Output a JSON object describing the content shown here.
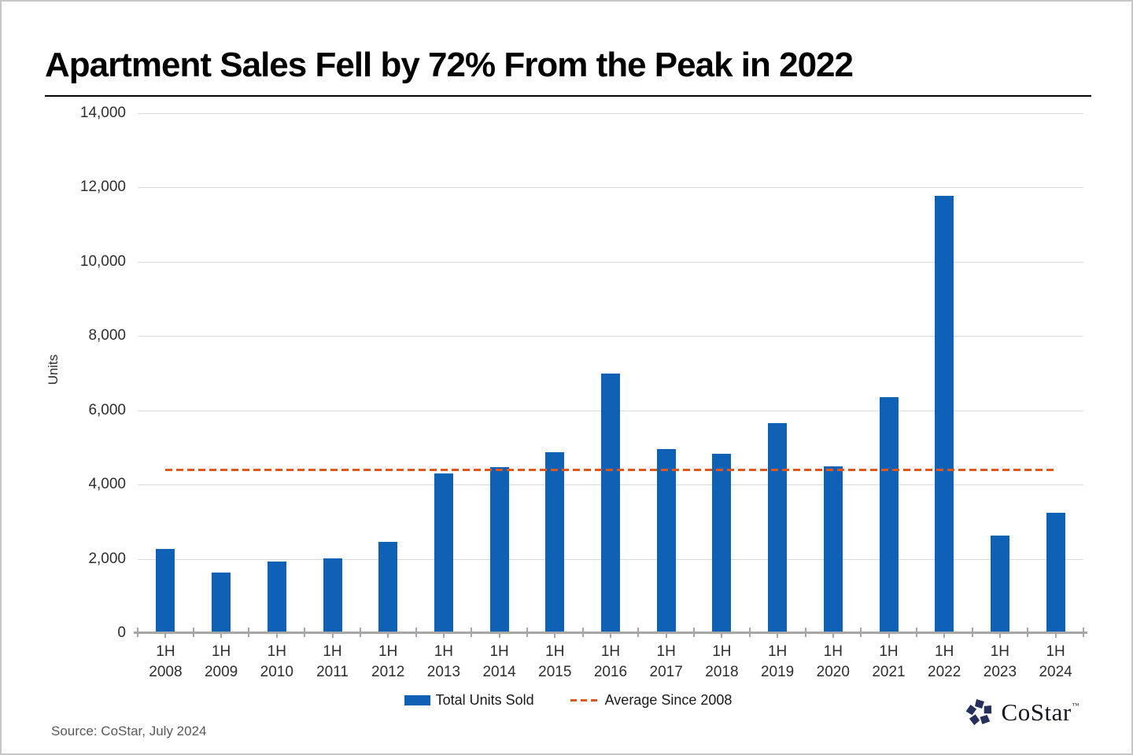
{
  "page": {
    "source_note": "Source: CoStar, July 2024",
    "logo": {
      "text": "CoStar",
      "trademark": "™"
    },
    "colors": {
      "bar": "#0e61b5",
      "average_line": "#e0571e",
      "gridline": "#d9d9d9",
      "axis": "#a6a6a6",
      "title": "#000000",
      "source_text": "#595959",
      "logo_navy": "#27305c"
    }
  },
  "chart_data": {
    "type": "bar",
    "title": "Apartment Sales Fell by 72% From the Peak in 2022",
    "ylabel": "Units",
    "ylim": [
      0,
      14000
    ],
    "ytick_interval": 2000,
    "grid": true,
    "legend_position": "bottom",
    "categories": [
      "1H 2008",
      "1H 2009",
      "1H 2010",
      "1H 2011",
      "1H 2012",
      "1H 2013",
      "1H 2014",
      "1H 2015",
      "1H 2016",
      "1H 2017",
      "1H 2018",
      "1H 2019",
      "1H 2020",
      "1H 2021",
      "1H 2022",
      "1H 2023",
      "1H 2024"
    ],
    "series": [
      {
        "name": "Total Units Sold",
        "values": [
          2270,
          1640,
          1930,
          2020,
          2460,
          4300,
          4460,
          4870,
          7000,
          4960,
          4820,
          5660,
          4500,
          6350,
          11780,
          2630,
          3250
        ]
      }
    ],
    "average_line": {
      "name": "Average Since 2008",
      "value": 4400
    }
  }
}
